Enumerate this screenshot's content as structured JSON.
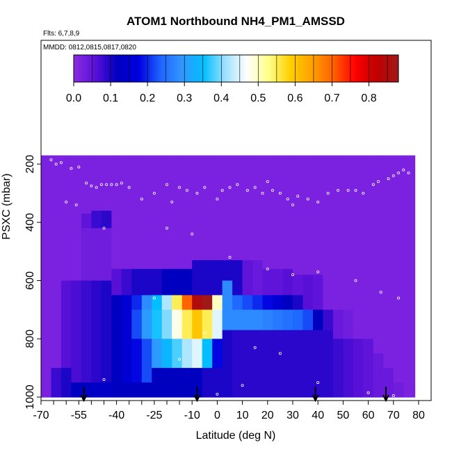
{
  "chart_data": {
    "type": "heatmap",
    "title": "ATOM1 Northbound NH4_PM1_AMSSD",
    "flights_label": "Flts: 6,7,8,9",
    "dates_label": "MMDD: 0812,0815,0817,0820",
    "xlabel": "Latitude (deg N)",
    "ylabel": "PSXC (mbar)",
    "xlim": [
      -70,
      80
    ],
    "ylim": [
      1000,
      60
    ],
    "x_ticks": [
      -70,
      -55,
      -40,
      -25,
      -10,
      0,
      10,
      20,
      30,
      40,
      50,
      60,
      70,
      80
    ],
    "x_tick_labels": [
      "-70",
      "-55",
      "-40",
      "-25",
      "-10",
      "0",
      "10",
      "20",
      "30",
      "40",
      "50",
      "60",
      "70",
      "80"
    ],
    "y_ticks": [
      200,
      400,
      600,
      800,
      1000
    ],
    "y_tick_labels": [
      "200",
      "400",
      "600",
      "800",
      "1000"
    ],
    "colorbar": {
      "min": 0.0,
      "max": 0.88,
      "ticks": [
        0.0,
        0.1,
        0.2,
        0.3,
        0.4,
        0.5,
        0.6,
        0.7,
        0.8
      ],
      "tick_labels": [
        "0.0",
        "0.1",
        "0.2",
        "0.3",
        "0.4",
        "0.5",
        "0.6",
        "0.7",
        "0.8"
      ],
      "colors": [
        "#8a2be2",
        "#5a10d8",
        "#0000c0",
        "#0000e0",
        "#1e64ff",
        "#3296ff",
        "#00bfff",
        "#9fe0ff",
        "#ffffff",
        "#ffff88",
        "#ffd000",
        "#ffa000",
        "#ff6000",
        "#ff0000",
        "#c00000",
        "#a01818"
      ]
    },
    "columns": [
      {
        "lat": -68,
        "bands": [
          [
            170,
            1000,
            0.02
          ]
        ]
      },
      {
        "lat": -64,
        "bands": [
          [
            170,
            900,
            0.02
          ],
          [
            900,
            1000,
            0.08
          ]
        ]
      },
      {
        "lat": -60,
        "bands": [
          [
            170,
            600,
            0.02
          ],
          [
            600,
            900,
            0.06
          ],
          [
            900,
            1000,
            0.1
          ]
        ]
      },
      {
        "lat": -56,
        "bands": [
          [
            170,
            600,
            0.02
          ],
          [
            600,
            950,
            0.07
          ],
          [
            950,
            1000,
            0.12
          ]
        ]
      },
      {
        "lat": -52,
        "bands": [
          [
            170,
            370,
            0.02
          ],
          [
            370,
            420,
            0.05
          ],
          [
            420,
            600,
            0.03
          ],
          [
            600,
            950,
            0.08
          ],
          [
            950,
            1000,
            0.12
          ]
        ]
      },
      {
        "lat": -48,
        "bands": [
          [
            170,
            360,
            0.02
          ],
          [
            360,
            420,
            0.08
          ],
          [
            420,
            600,
            0.03
          ],
          [
            600,
            950,
            0.09
          ],
          [
            950,
            1000,
            0.13
          ]
        ]
      },
      {
        "lat": -44,
        "bands": [
          [
            170,
            360,
            0.02
          ],
          [
            360,
            420,
            0.09
          ],
          [
            420,
            600,
            0.03
          ],
          [
            600,
            950,
            0.1
          ],
          [
            950,
            1000,
            0.13
          ]
        ]
      },
      {
        "lat": -40,
        "bands": [
          [
            170,
            560,
            0.02
          ],
          [
            560,
            650,
            0.06
          ],
          [
            650,
            950,
            0.12
          ],
          [
            950,
            1000,
            0.12
          ]
        ]
      },
      {
        "lat": -36,
        "bands": [
          [
            170,
            560,
            0.02
          ],
          [
            560,
            650,
            0.08
          ],
          [
            650,
            950,
            0.15
          ],
          [
            950,
            1000,
            0.12
          ]
        ]
      },
      {
        "lat": -32,
        "bands": [
          [
            170,
            560,
            0.02
          ],
          [
            560,
            650,
            0.1
          ],
          [
            650,
            700,
            0.2
          ],
          [
            700,
            800,
            0.22
          ],
          [
            800,
            950,
            0.18
          ],
          [
            950,
            1000,
            0.12
          ]
        ]
      },
      {
        "lat": -28,
        "bands": [
          [
            170,
            560,
            0.02
          ],
          [
            560,
            650,
            0.1
          ],
          [
            650,
            700,
            0.28
          ],
          [
            700,
            800,
            0.3
          ],
          [
            800,
            950,
            0.22
          ],
          [
            950,
            1000,
            0.12
          ]
        ]
      },
      {
        "lat": -24,
        "bands": [
          [
            170,
            560,
            0.02
          ],
          [
            560,
            650,
            0.1
          ],
          [
            650,
            700,
            0.35
          ],
          [
            700,
            800,
            0.36
          ],
          [
            800,
            900,
            0.3
          ],
          [
            900,
            1000,
            0.12
          ]
        ]
      },
      {
        "lat": -20,
        "bands": [
          [
            170,
            560,
            0.02
          ],
          [
            560,
            650,
            0.12
          ],
          [
            650,
            700,
            0.42
          ],
          [
            700,
            800,
            0.4
          ],
          [
            800,
            900,
            0.34
          ],
          [
            900,
            1000,
            0.12
          ]
        ]
      },
      {
        "lat": -16,
        "bands": [
          [
            170,
            560,
            0.02
          ],
          [
            560,
            650,
            0.12
          ],
          [
            650,
            700,
            0.55
          ],
          [
            700,
            800,
            0.48
          ],
          [
            800,
            900,
            0.38
          ],
          [
            900,
            1000,
            0.12
          ]
        ]
      },
      {
        "lat": -12,
        "bands": [
          [
            170,
            560,
            0.02
          ],
          [
            560,
            650,
            0.12
          ],
          [
            650,
            700,
            0.7
          ],
          [
            700,
            800,
            0.55
          ],
          [
            800,
            900,
            0.42
          ],
          [
            900,
            1000,
            0.12
          ]
        ]
      },
      {
        "lat": -8,
        "bands": [
          [
            170,
            530,
            0.02
          ],
          [
            530,
            650,
            0.1
          ],
          [
            650,
            700,
            0.85
          ],
          [
            700,
            800,
            0.6
          ],
          [
            800,
            900,
            0.45
          ],
          [
            900,
            1000,
            0.12
          ]
        ]
      },
      {
        "lat": -4,
        "bands": [
          [
            170,
            530,
            0.02
          ],
          [
            530,
            650,
            0.1
          ],
          [
            650,
            700,
            0.88
          ],
          [
            700,
            800,
            0.55
          ],
          [
            800,
            900,
            0.35
          ],
          [
            900,
            1000,
            0.1
          ]
        ]
      },
      {
        "lat": 0,
        "bands": [
          [
            170,
            530,
            0.02
          ],
          [
            530,
            650,
            0.1
          ],
          [
            650,
            700,
            0.5
          ],
          [
            700,
            800,
            0.45
          ],
          [
            800,
            900,
            0.18
          ],
          [
            900,
            1000,
            0.1
          ]
        ]
      },
      {
        "lat": 4,
        "bands": [
          [
            170,
            530,
            0.02
          ],
          [
            530,
            600,
            0.1
          ],
          [
            600,
            700,
            0.28
          ],
          [
            700,
            770,
            0.28
          ],
          [
            770,
            1000,
            0.1
          ]
        ]
      },
      {
        "lat": 8,
        "bands": [
          [
            170,
            530,
            0.02
          ],
          [
            530,
            650,
            0.1
          ],
          [
            650,
            700,
            0.24
          ],
          [
            700,
            770,
            0.28
          ],
          [
            770,
            1000,
            0.09
          ]
        ]
      },
      {
        "lat": 12,
        "bands": [
          [
            170,
            530,
            0.02
          ],
          [
            530,
            650,
            0.05
          ],
          [
            650,
            700,
            0.22
          ],
          [
            700,
            770,
            0.28
          ],
          [
            770,
            1000,
            0.09
          ]
        ]
      },
      {
        "lat": 16,
        "bands": [
          [
            170,
            530,
            0.02
          ],
          [
            530,
            650,
            0.04
          ],
          [
            650,
            700,
            0.2
          ],
          [
            700,
            770,
            0.28
          ],
          [
            770,
            1000,
            0.09
          ]
        ]
      },
      {
        "lat": 20,
        "bands": [
          [
            170,
            560,
            0.02
          ],
          [
            560,
            650,
            0.05
          ],
          [
            650,
            700,
            0.18
          ],
          [
            700,
            770,
            0.27
          ],
          [
            770,
            1000,
            0.09
          ]
        ]
      },
      {
        "lat": 24,
        "bands": [
          [
            170,
            560,
            0.02
          ],
          [
            560,
            650,
            0.05
          ],
          [
            650,
            700,
            0.15
          ],
          [
            700,
            770,
            0.26
          ],
          [
            770,
            1000,
            0.09
          ]
        ]
      },
      {
        "lat": 28,
        "bands": [
          [
            170,
            560,
            0.02
          ],
          [
            560,
            650,
            0.06
          ],
          [
            650,
            700,
            0.12
          ],
          [
            700,
            770,
            0.25
          ],
          [
            770,
            1000,
            0.09
          ]
        ]
      },
      {
        "lat": 32,
        "bands": [
          [
            170,
            580,
            0.02
          ],
          [
            580,
            650,
            0.05
          ],
          [
            650,
            700,
            0.1
          ],
          [
            700,
            770,
            0.24
          ],
          [
            770,
            1000,
            0.09
          ]
        ]
      },
      {
        "lat": 36,
        "bands": [
          [
            170,
            580,
            0.02
          ],
          [
            580,
            700,
            0.06
          ],
          [
            700,
            770,
            0.22
          ],
          [
            770,
            1000,
            0.09
          ]
        ]
      },
      {
        "lat": 40,
        "bands": [
          [
            170,
            580,
            0.02
          ],
          [
            580,
            700,
            0.05
          ],
          [
            700,
            770,
            0.12
          ],
          [
            770,
            1000,
            0.09
          ]
        ]
      },
      {
        "lat": 44,
        "bands": [
          [
            170,
            700,
            0.02
          ],
          [
            700,
            770,
            0.08
          ],
          [
            770,
            1000,
            0.09
          ]
        ]
      },
      {
        "lat": 48,
        "bands": [
          [
            170,
            700,
            0.02
          ],
          [
            700,
            800,
            0.04
          ],
          [
            800,
            1000,
            0.08
          ]
        ]
      },
      {
        "lat": 52,
        "bands": [
          [
            170,
            700,
            0.02
          ],
          [
            700,
            800,
            0.03
          ],
          [
            800,
            1000,
            0.07
          ]
        ]
      },
      {
        "lat": 56,
        "bands": [
          [
            170,
            800,
            0.02
          ],
          [
            800,
            1000,
            0.06
          ]
        ]
      },
      {
        "lat": 60,
        "bands": [
          [
            170,
            800,
            0.02
          ],
          [
            800,
            1000,
            0.05
          ]
        ]
      },
      {
        "lat": 64,
        "bands": [
          [
            170,
            850,
            0.02
          ],
          [
            850,
            1000,
            0.04
          ]
        ]
      },
      {
        "lat": 68,
        "bands": [
          [
            170,
            900,
            0.02
          ],
          [
            900,
            1000,
            0.04
          ]
        ]
      },
      {
        "lat": 72,
        "bands": [
          [
            170,
            950,
            0.02
          ],
          [
            950,
            1000,
            0.03
          ]
        ]
      },
      {
        "lat": 76,
        "bands": [
          [
            170,
            1000,
            0.02
          ]
        ]
      }
    ],
    "arrows_lat": [
      -53,
      -8,
      39,
      67
    ],
    "sample_points": [
      [
        -66,
        185
      ],
      [
        -64,
        200
      ],
      [
        -62,
        195
      ],
      [
        -58,
        215
      ],
      [
        -55,
        210
      ],
      [
        -52,
        265
      ],
      [
        -50,
        275
      ],
      [
        -48,
        280
      ],
      [
        -46,
        270
      ],
      [
        -44,
        270
      ],
      [
        -42,
        270
      ],
      [
        -40,
        270
      ],
      [
        -38,
        265
      ],
      [
        -35,
        280
      ],
      [
        -30,
        320
      ],
      [
        -25,
        300
      ],
      [
        -20,
        270
      ],
      [
        -18,
        330
      ],
      [
        -15,
        280
      ],
      [
        -12,
        290
      ],
      [
        -8,
        300
      ],
      [
        -5,
        280
      ],
      [
        0,
        320
      ],
      [
        2,
        290
      ],
      [
        5,
        280
      ],
      [
        8,
        270
      ],
      [
        12,
        290
      ],
      [
        15,
        280
      ],
      [
        18,
        300
      ],
      [
        20,
        260
      ],
      [
        22,
        290
      ],
      [
        25,
        300
      ],
      [
        28,
        320
      ],
      [
        30,
        340
      ],
      [
        32,
        310
      ],
      [
        36,
        320
      ],
      [
        40,
        330
      ],
      [
        44,
        300
      ],
      [
        48,
        290
      ],
      [
        52,
        290
      ],
      [
        55,
        290
      ],
      [
        58,
        300
      ],
      [
        62,
        270
      ],
      [
        64,
        260
      ],
      [
        68,
        250
      ],
      [
        70,
        240
      ],
      [
        72,
        230
      ],
      [
        74,
        220
      ],
      [
        76,
        230
      ],
      [
        -60,
        330
      ],
      [
        -56,
        340
      ],
      [
        -45,
        420
      ],
      [
        -20,
        420
      ],
      [
        -10,
        440
      ],
      [
        5,
        520
      ],
      [
        20,
        560
      ],
      [
        30,
        580
      ],
      [
        40,
        570
      ],
      [
        55,
        600
      ],
      [
        65,
        640
      ],
      [
        72,
        660
      ],
      [
        -25,
        660
      ],
      [
        -5,
        780
      ],
      [
        15,
        830
      ],
      [
        25,
        850
      ],
      [
        -15,
        870
      ],
      [
        -45,
        940
      ],
      [
        0,
        990
      ],
      [
        10,
        960
      ],
      [
        40,
        950
      ],
      [
        60,
        985
      ],
      [
        70,
        995
      ]
    ]
  }
}
